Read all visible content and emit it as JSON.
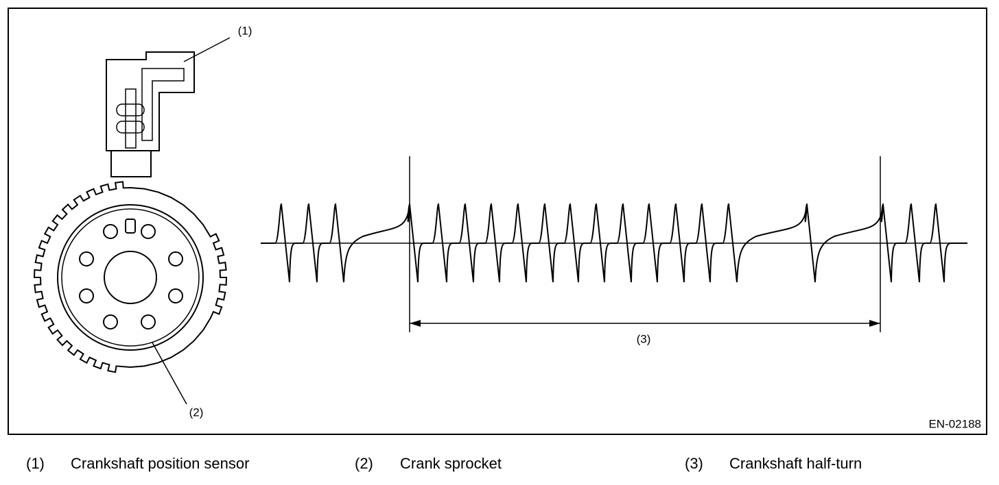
{
  "diagram": {
    "callouts": [
      "(1)",
      "(2)",
      "(3)"
    ],
    "code": "EN-02188"
  },
  "legend": [
    {
      "number": "(1)",
      "text": "Crankshaft position sensor"
    },
    {
      "number": "(2)",
      "text": "Crank sprocket"
    },
    {
      "number": "(3)",
      "text": "Crankshaft half-turn"
    }
  ]
}
